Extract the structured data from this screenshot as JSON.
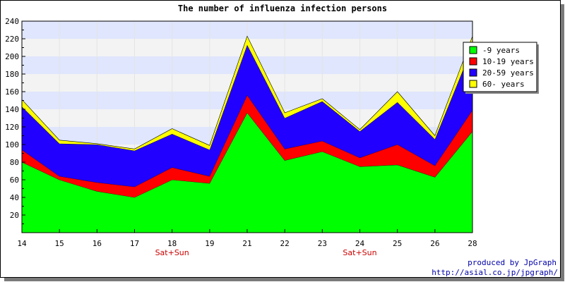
{
  "chart_data": {
    "type": "area",
    "stacked": true,
    "title": "The number of influenza infection persons",
    "xlabel": "",
    "ylabel": "",
    "categories": [
      "14",
      "15",
      "16",
      "17",
      "18",
      "19",
      "21",
      "22",
      "23",
      "24",
      "25",
      "26",
      "28"
    ],
    "sublabels": [
      "",
      "",
      "",
      "",
      "Sat+Sun",
      "",
      "",
      "",
      "",
      "Sat+Sun",
      "",
      "",
      ""
    ],
    "ylim": [
      0,
      240
    ],
    "yticks": [
      20,
      40,
      60,
      80,
      100,
      120,
      140,
      160,
      180,
      200,
      220,
      240
    ],
    "grid": true,
    "legend_position": "top-right",
    "series": [
      {
        "name": "-9 years",
        "color": "#00ff00",
        "values": [
          80,
          60,
          47,
          40,
          60,
          56,
          136,
          82,
          92,
          75,
          77,
          63,
          115
        ]
      },
      {
        "name": "10-19 years",
        "color": "#ff0000",
        "values": [
          14,
          4,
          10,
          12,
          14,
          8,
          20,
          13,
          12,
          10,
          23,
          13,
          24
        ]
      },
      {
        "name": "20-59 years",
        "color": "#2200ff",
        "values": [
          49,
          37,
          43,
          41,
          38,
          30,
          57,
          35,
          45,
          30,
          48,
          30,
          72
        ]
      },
      {
        "name": "60- years",
        "color": "#ffff00",
        "values": [
          8,
          4,
          1,
          2,
          6,
          5,
          10,
          6,
          3,
          2,
          12,
          4,
          12
        ]
      }
    ]
  },
  "credit": {
    "line1": "produced by JpGraph",
    "line2": "http://asial.co.jp/jpgraph/"
  }
}
